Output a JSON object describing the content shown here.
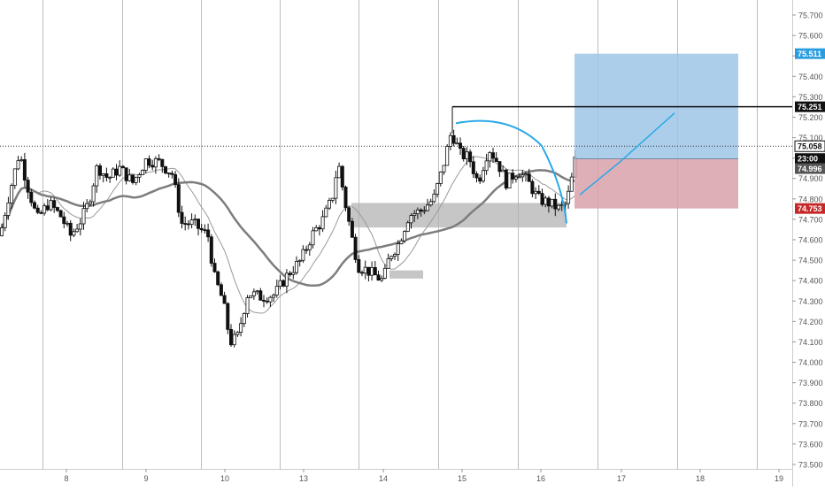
{
  "chart_data": {
    "type": "candlestick",
    "title": "",
    "price_axis": {
      "ticks": [
        "75.700",
        "75.600",
        "75.500",
        "75.400",
        "75.300",
        "75.200",
        "75.100",
        "75.000",
        "74.900",
        "74.800",
        "74.700",
        "74.600",
        "74.500",
        "74.400",
        "74.300",
        "74.200",
        "74.100",
        "74.000",
        "73.900",
        "73.800",
        "73.700",
        "73.600",
        "73.500"
      ],
      "ylim": [
        73.5,
        75.75
      ]
    },
    "time_axis": {
      "ticks": [
        "8",
        "9",
        "10",
        "13",
        "14",
        "15",
        "16",
        "17",
        "18",
        "19"
      ]
    },
    "grid": "vertical",
    "price_labels": {
      "target": "75.511",
      "upper_line": "75.251",
      "last_price": "75.058",
      "countdown": "23:00",
      "entry": "74.996",
      "stop": "74.753"
    },
    "candles": [],
    "ma_fast": [],
    "ma_slow": [],
    "position": {
      "target": 75.511,
      "entry": 74.996,
      "stop": 74.753
    },
    "horizontal_line": 75.251,
    "current_price_line": 75.058,
    "zones": [
      {
        "from": 74.78,
        "to": 74.66
      },
      {
        "from": 74.45,
        "to": 74.41
      }
    ],
    "colors": {
      "axis_text": "#555555",
      "grid": "#bdbdbd",
      "candle": "#111111",
      "ma": "#888888",
      "profit_zone": "#9ec5e8",
      "loss_zone": "#d9a1aa",
      "target_label": "#2a9de0",
      "stop_label": "#c62828",
      "entry_label": "#555555",
      "dark_label": "#111111",
      "gray_box": "#b3b3b3",
      "curve": "#29a9e6"
    }
  }
}
